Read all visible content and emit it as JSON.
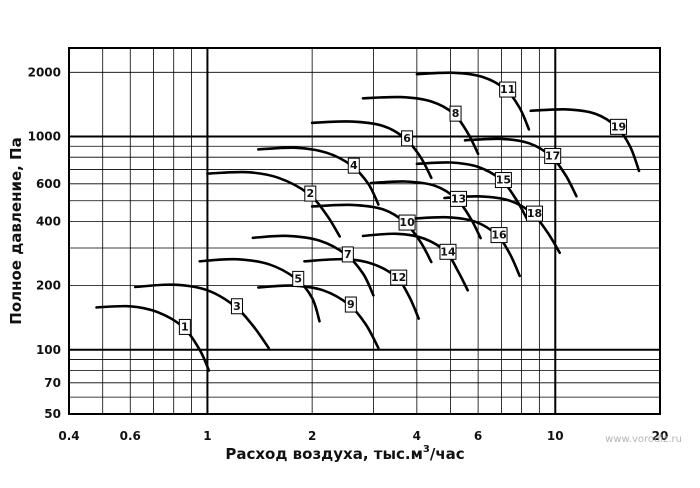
{
  "chart_data": {
    "type": "line",
    "xlabel_main": "Расход воздуха, тыс.м",
    "xlabel_sup": "3",
    "xlabel_tail": "/час",
    "ylabel": "Полное давление, Па",
    "x_scale": "log",
    "y_scale": "log",
    "xlim": [
      0.4,
      20
    ],
    "ylim": [
      50,
      2600
    ],
    "grid": true,
    "x_ticks": [
      "0.4",
      "0.6",
      "1",
      "2",
      "4",
      "6",
      "10",
      "20"
    ],
    "y_ticks": [
      "50",
      "70",
      "100",
      "200",
      "400",
      "600",
      "1000",
      "2000"
    ],
    "series": [
      {
        "name": "1",
        "x": [
          0.48,
          0.6,
          0.72,
          0.85,
          0.95,
          1.01
        ],
        "y": [
          158,
          160,
          150,
          128,
          100,
          80
        ]
      },
      {
        "name": "2",
        "x": [
          1.0,
          1.3,
          1.6,
          1.95,
          2.2,
          2.4
        ],
        "y": [
          670,
          680,
          640,
          540,
          430,
          340
        ]
      },
      {
        "name": "3",
        "x": [
          0.62,
          0.8,
          1.0,
          1.2,
          1.35,
          1.5
        ],
        "y": [
          197,
          202,
          190,
          160,
          130,
          102
        ]
      },
      {
        "name": "4",
        "x": [
          1.4,
          1.8,
          2.2,
          2.6,
          2.9,
          3.1
        ],
        "y": [
          870,
          885,
          840,
          730,
          600,
          480
        ]
      },
      {
        "name": "5",
        "x": [
          0.95,
          1.2,
          1.5,
          1.8,
          2.0,
          2.1
        ],
        "y": [
          260,
          266,
          252,
          215,
          175,
          136
        ]
      },
      {
        "name": "6",
        "x": [
          2.0,
          2.6,
          3.2,
          3.7,
          4.1,
          4.4
        ],
        "y": [
          1160,
          1175,
          1120,
          980,
          800,
          640
        ]
      },
      {
        "name": "7",
        "x": [
          1.35,
          1.7,
          2.1,
          2.5,
          2.8,
          3.0
        ],
        "y": [
          335,
          342,
          325,
          280,
          228,
          180
        ]
      },
      {
        "name": "8",
        "x": [
          2.8,
          3.6,
          4.4,
          5.1,
          5.6,
          6.0
        ],
        "y": [
          1510,
          1530,
          1460,
          1280,
          1040,
          830
        ]
      },
      {
        "name": "9",
        "x": [
          1.4,
          1.75,
          2.15,
          2.55,
          2.85,
          3.1
        ],
        "y": [
          196,
          200,
          190,
          163,
          132,
          102
        ]
      },
      {
        "name": "10",
        "x": [
          2.0,
          2.6,
          3.2,
          3.7,
          4.1,
          4.4
        ],
        "y": [
          470,
          478,
          455,
          395,
          320,
          258
        ]
      },
      {
        "name": "11",
        "x": [
          4.0,
          5.1,
          6.2,
          7.2,
          7.9,
          8.4
        ],
        "y": [
          1960,
          1990,
          1900,
          1660,
          1360,
          1080
        ]
      },
      {
        "name": "12",
        "x": [
          1.9,
          2.5,
          3.0,
          3.5,
          3.8,
          4.05
        ],
        "y": [
          260,
          266,
          252,
          218,
          178,
          140
        ]
      },
      {
        "name": "13",
        "x": [
          2.95,
          3.7,
          4.5,
          5.2,
          5.7,
          6.1
        ],
        "y": [
          605,
          615,
          588,
          510,
          415,
          334
        ]
      },
      {
        "name": "14",
        "x": [
          2.8,
          3.5,
          4.2,
          4.85,
          5.25,
          5.6
        ],
        "y": [
          342,
          350,
          332,
          288,
          234,
          190
        ]
      },
      {
        "name": "15",
        "x": [
          4.0,
          5.0,
          6.0,
          7.0,
          7.7,
          8.3
        ],
        "y": [
          745,
          755,
          720,
          625,
          510,
          410
        ]
      },
      {
        "name": "16",
        "x": [
          3.9,
          4.9,
          5.9,
          6.8,
          7.4,
          7.9
        ],
        "y": [
          412,
          418,
          398,
          345,
          282,
          222
        ]
      },
      {
        "name": "17",
        "x": [
          5.5,
          7.0,
          8.4,
          9.7,
          10.7,
          11.5
        ],
        "y": [
          960,
          975,
          930,
          810,
          660,
          525
        ]
      },
      {
        "name": "18",
        "x": [
          4.8,
          6.1,
          7.4,
          8.6,
          9.5,
          10.3
        ],
        "y": [
          515,
          524,
          500,
          435,
          355,
          285
        ]
      },
      {
        "name": "19",
        "x": [
          8.5,
          10.8,
          13.0,
          15.0,
          16.4,
          17.4
        ],
        "y": [
          1320,
          1340,
          1280,
          1110,
          900,
          690
        ]
      }
    ]
  },
  "watermark": "www.vorodiz.ru",
  "colors": {
    "curve": "#000000",
    "grid": "#000000",
    "background": "#ffffff"
  }
}
